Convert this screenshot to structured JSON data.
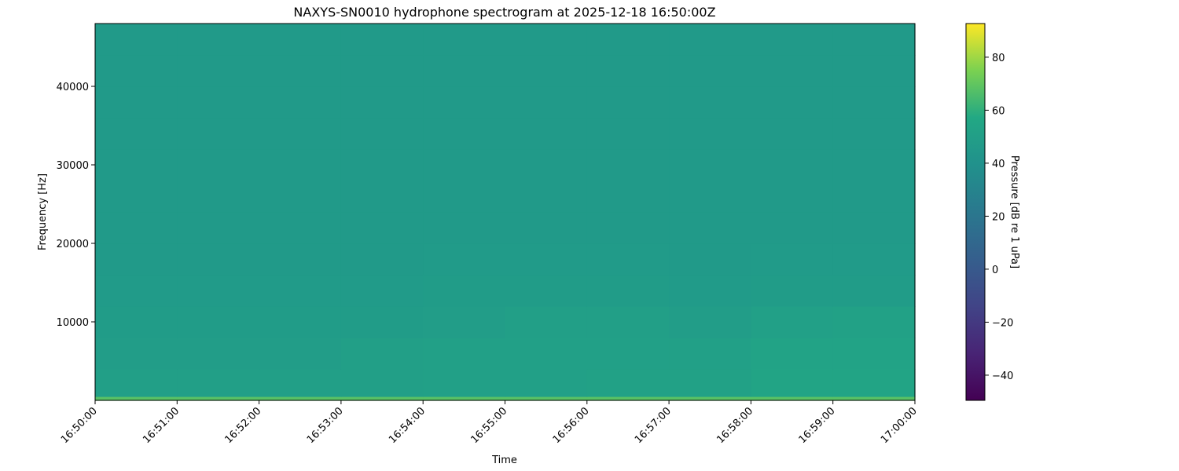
{
  "chart_data": {
    "type": "heatmap",
    "title": "NAXYS-SN0010 hydrophone spectrogram at 2025-12-18 16:50:00Z",
    "xlabel": "Time",
    "ylabel": "Frequency [Hz]",
    "colorbar_label": "Pressure [dB re 1 uPa]",
    "colormap": "viridis",
    "x_tick_labels": [
      "16:50:00",
      "16:51:00",
      "16:52:00",
      "16:53:00",
      "16:54:00",
      "16:55:00",
      "16:56:00",
      "16:57:00",
      "16:58:00",
      "16:59:00",
      "17:00:00"
    ],
    "xlim": [
      "16:50:00",
      "17:00:00"
    ],
    "y_ticks": [
      10000,
      20000,
      30000,
      40000
    ],
    "ylim": [
      0,
      48000
    ],
    "colorbar_ticks": [
      -40,
      -20,
      0,
      20,
      40,
      60,
      80
    ],
    "clim": [
      -49.5,
      92.7
    ],
    "time_bins": [
      "16:50",
      "16:51",
      "16:52",
      "16:53",
      "16:54",
      "16:55",
      "16:56",
      "16:57",
      "16:58",
      "16:59"
    ],
    "freq_bin_edges": [
      0,
      500,
      4000,
      8000,
      12000,
      16000,
      20000,
      24000,
      28000,
      32000,
      36000,
      40000,
      44000,
      48000
    ],
    "values_db": [
      [
        68,
        68,
        68,
        68,
        68,
        68,
        68,
        68,
        68,
        68
      ],
      [
        50,
        50,
        50,
        50,
        51,
        51,
        52,
        52,
        54,
        54
      ],
      [
        49,
        49,
        49,
        50,
        51,
        51,
        51,
        51,
        53,
        53
      ],
      [
        48,
        48,
        48,
        48,
        49,
        50,
        50,
        49,
        51,
        52
      ],
      [
        47,
        47,
        47,
        47,
        48,
        48,
        48,
        47,
        48,
        48
      ],
      [
        46.5,
        46.5,
        46.5,
        46.5,
        47,
        47,
        47,
        46.5,
        47,
        47
      ],
      [
        46,
        46,
        46,
        46,
        46.5,
        46.5,
        46.5,
        46,
        46.5,
        46.5
      ],
      [
        46,
        46,
        46,
        46,
        46,
        46,
        46,
        46,
        46,
        46
      ],
      [
        46,
        46,
        46,
        46,
        46,
        46,
        46,
        46,
        46,
        46
      ],
      [
        46,
        46,
        46,
        46,
        46,
        46,
        46,
        46,
        46,
        46
      ],
      [
        46,
        46,
        46,
        46,
        46,
        46,
        46,
        46,
        46,
        46
      ],
      [
        46,
        46,
        46,
        46,
        46,
        46,
        46,
        46,
        46,
        46
      ],
      [
        46,
        46,
        46,
        46,
        46,
        46,
        46,
        46,
        46,
        46
      ]
    ]
  }
}
